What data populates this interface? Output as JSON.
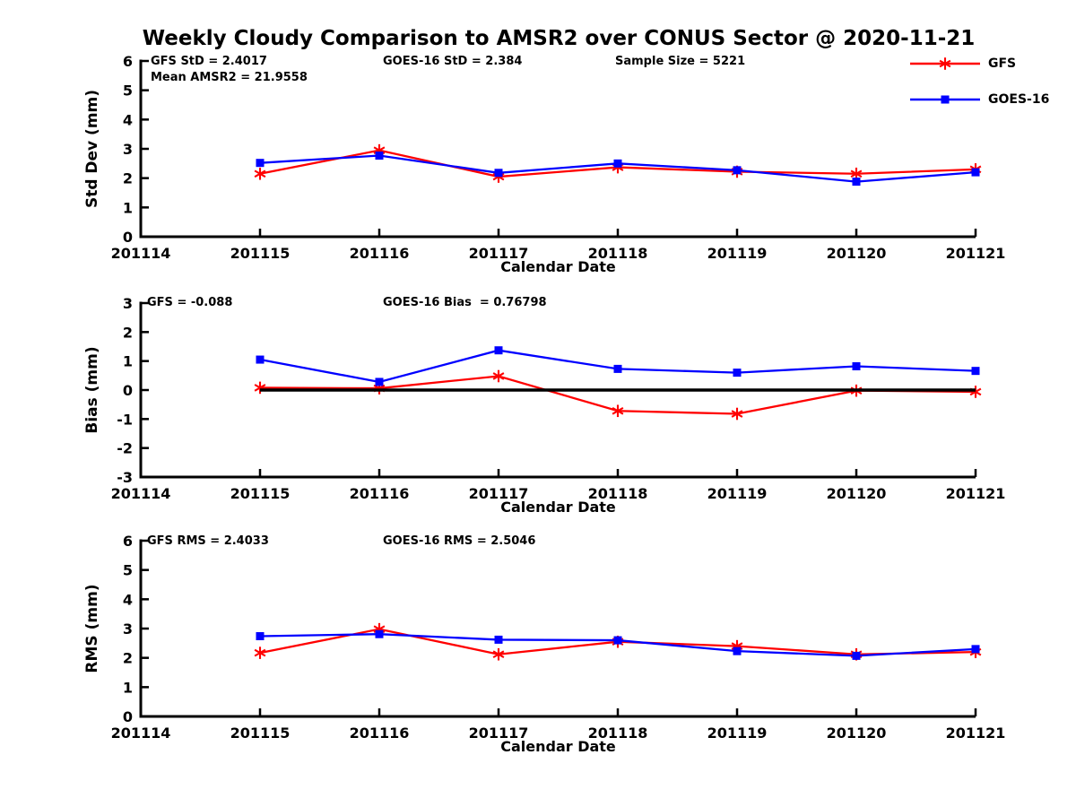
{
  "title": "Weekly Cloudy Comparison to AMSR2 over CONUS Sector @ 2020-11-21",
  "legend": {
    "position": "top-right",
    "items": [
      {
        "label": "GFS",
        "color": "#ff0000",
        "marker": "asterisk"
      },
      {
        "label": "GOES-16",
        "color": "#0000ff",
        "marker": "square"
      }
    ]
  },
  "chart_data": [
    {
      "type": "line",
      "panel": "std-dev",
      "ylabel": "Std Dev (mm)",
      "xlabel": "Calendar Date",
      "x_categories": [
        "201114",
        "201115",
        "201116",
        "201117",
        "201118",
        "201119",
        "201120",
        "201121"
      ],
      "ylim": [
        0,
        6
      ],
      "yticks": [
        0,
        1,
        2,
        3,
        4,
        5,
        6
      ],
      "grid": false,
      "annotations": [
        {
          "text": "GFS StD = 2.4017"
        },
        {
          "text": "GOES-16 StD = 2.384"
        },
        {
          "text": "Sample Size = 5221"
        },
        {
          "text": "Mean AMSR2 = 21.9558"
        }
      ],
      "series": [
        {
          "name": "GFS",
          "color": "#ff0000",
          "marker": "asterisk",
          "x": [
            "201115",
            "201116",
            "201117",
            "201118",
            "201119",
            "201120",
            "201121"
          ],
          "values": [
            2.15,
            2.95,
            2.05,
            2.37,
            2.22,
            2.15,
            2.3
          ]
        },
        {
          "name": "GOES-16",
          "color": "#0000ff",
          "marker": "square",
          "x": [
            "201115",
            "201116",
            "201117",
            "201118",
            "201119",
            "201120",
            "201121"
          ],
          "values": [
            2.52,
            2.77,
            2.18,
            2.5,
            2.27,
            1.88,
            2.2
          ]
        }
      ]
    },
    {
      "type": "line",
      "panel": "bias",
      "ylabel": "Bias (mm)",
      "xlabel": "Calendar Date",
      "x_categories": [
        "201114",
        "201115",
        "201116",
        "201117",
        "201118",
        "201119",
        "201120",
        "201121"
      ],
      "ylim": [
        -3,
        3
      ],
      "yticks": [
        3,
        2,
        1,
        0,
        -1,
        -2,
        -3
      ],
      "grid": false,
      "ref_line_y": 0,
      "annotations": [
        {
          "text": "GFS = -0.088"
        },
        {
          "text": "GOES-16 Bias  = 0.76798"
        }
      ],
      "series": [
        {
          "name": "GFS",
          "color": "#ff0000",
          "marker": "asterisk",
          "x": [
            "201115",
            "201116",
            "201117",
            "201118",
            "201119",
            "201120",
            "201121"
          ],
          "values": [
            0.08,
            0.06,
            0.48,
            -0.72,
            -0.82,
            -0.02,
            -0.06
          ]
        },
        {
          "name": "GOES-16",
          "color": "#0000ff",
          "marker": "square",
          "x": [
            "201115",
            "201116",
            "201117",
            "201118",
            "201119",
            "201120",
            "201121"
          ],
          "values": [
            1.05,
            0.28,
            1.37,
            0.73,
            0.6,
            0.82,
            0.66
          ]
        }
      ]
    },
    {
      "type": "line",
      "panel": "rms",
      "ylabel": "RMS (mm)",
      "xlabel": "Calendar Date",
      "x_categories": [
        "201114",
        "201115",
        "201116",
        "201117",
        "201118",
        "201119",
        "201120",
        "201121"
      ],
      "ylim": [
        0,
        6
      ],
      "yticks": [
        0,
        1,
        2,
        3,
        4,
        5,
        6
      ],
      "grid": false,
      "annotations": [
        {
          "text": "GFS RMS = 2.4033"
        },
        {
          "text": "GOES-16 RMS = 2.5046"
        }
      ],
      "series": [
        {
          "name": "GFS",
          "color": "#ff0000",
          "marker": "asterisk",
          "x": [
            "201115",
            "201116",
            "201117",
            "201118",
            "201119",
            "201120",
            "201121"
          ],
          "values": [
            2.17,
            2.98,
            2.12,
            2.55,
            2.4,
            2.12,
            2.2
          ]
        },
        {
          "name": "GOES-16",
          "color": "#0000ff",
          "marker": "square",
          "x": [
            "201115",
            "201116",
            "201117",
            "201118",
            "201119",
            "201120",
            "201121"
          ],
          "values": [
            2.74,
            2.81,
            2.62,
            2.6,
            2.23,
            2.07,
            2.3
          ]
        }
      ]
    }
  ]
}
